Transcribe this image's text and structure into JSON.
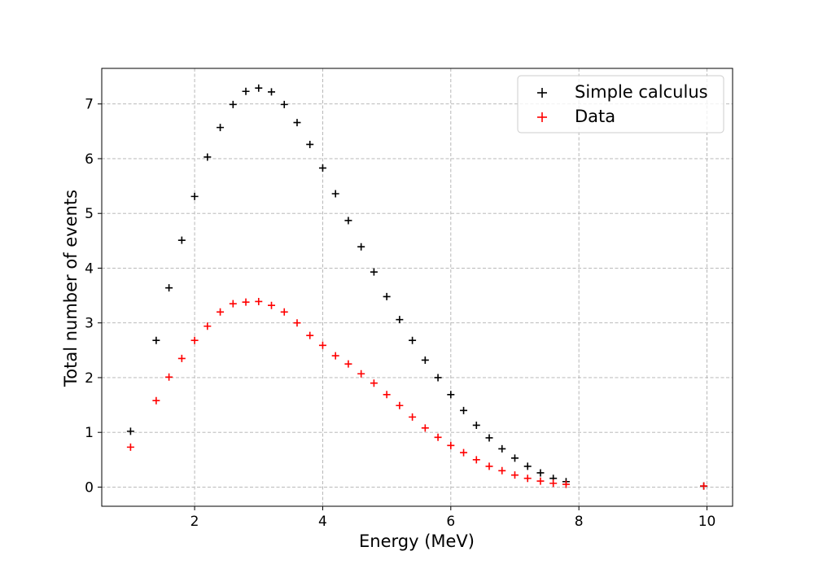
{
  "chart_data": {
    "type": "scatter",
    "xlabel": "Energy (MeV)",
    "ylabel": "Total number of events",
    "xlim": [
      0.55,
      10.4
    ],
    "ylim": [
      -0.35,
      7.65
    ],
    "xticks": [
      2,
      4,
      6,
      8,
      10
    ],
    "yticks": [
      0,
      1,
      2,
      3,
      4,
      5,
      6,
      7
    ],
    "grid": true,
    "legend_position": "upper right",
    "marker": "+",
    "series": [
      {
        "name": "Simple calculus",
        "color": "#000000",
        "x": [
          1.0,
          1.4,
          1.6,
          1.8,
          2.0,
          2.2,
          2.4,
          2.6,
          2.8,
          3.0,
          3.2,
          3.4,
          3.6,
          3.8,
          4.0,
          4.2,
          4.4,
          4.6,
          4.8,
          5.0,
          5.2,
          5.4,
          5.6,
          5.8,
          6.0,
          6.2,
          6.4,
          6.6,
          6.8,
          7.0,
          7.2,
          7.4,
          7.6,
          7.8,
          9.95
        ],
        "y": [
          1.02,
          2.68,
          3.64,
          4.51,
          5.31,
          6.03,
          6.57,
          6.99,
          7.23,
          7.29,
          7.22,
          6.99,
          6.66,
          6.26,
          5.83,
          5.36,
          4.87,
          4.39,
          3.93,
          3.48,
          3.06,
          2.68,
          2.32,
          2.0,
          1.69,
          1.4,
          1.13,
          0.9,
          0.7,
          0.53,
          0.38,
          0.26,
          0.16,
          0.1,
          0.02
        ]
      },
      {
        "name": "Data",
        "color": "#ff0000",
        "x": [
          1.0,
          1.4,
          1.6,
          1.8,
          2.0,
          2.2,
          2.4,
          2.6,
          2.8,
          3.0,
          3.2,
          3.4,
          3.6,
          3.8,
          4.0,
          4.2,
          4.4,
          4.6,
          4.8,
          5.0,
          5.2,
          5.4,
          5.6,
          5.8,
          6.0,
          6.2,
          6.4,
          6.6,
          6.8,
          7.0,
          7.2,
          7.4,
          7.6,
          7.8,
          9.95
        ],
        "y": [
          0.73,
          1.58,
          2.01,
          2.35,
          2.68,
          2.94,
          3.2,
          3.35,
          3.38,
          3.39,
          3.32,
          3.2,
          3.0,
          2.77,
          2.59,
          2.4,
          2.25,
          2.07,
          1.9,
          1.69,
          1.49,
          1.28,
          1.08,
          0.91,
          0.76,
          0.63,
          0.5,
          0.38,
          0.3,
          0.22,
          0.16,
          0.11,
          0.07,
          0.05,
          0.02
        ]
      }
    ]
  }
}
